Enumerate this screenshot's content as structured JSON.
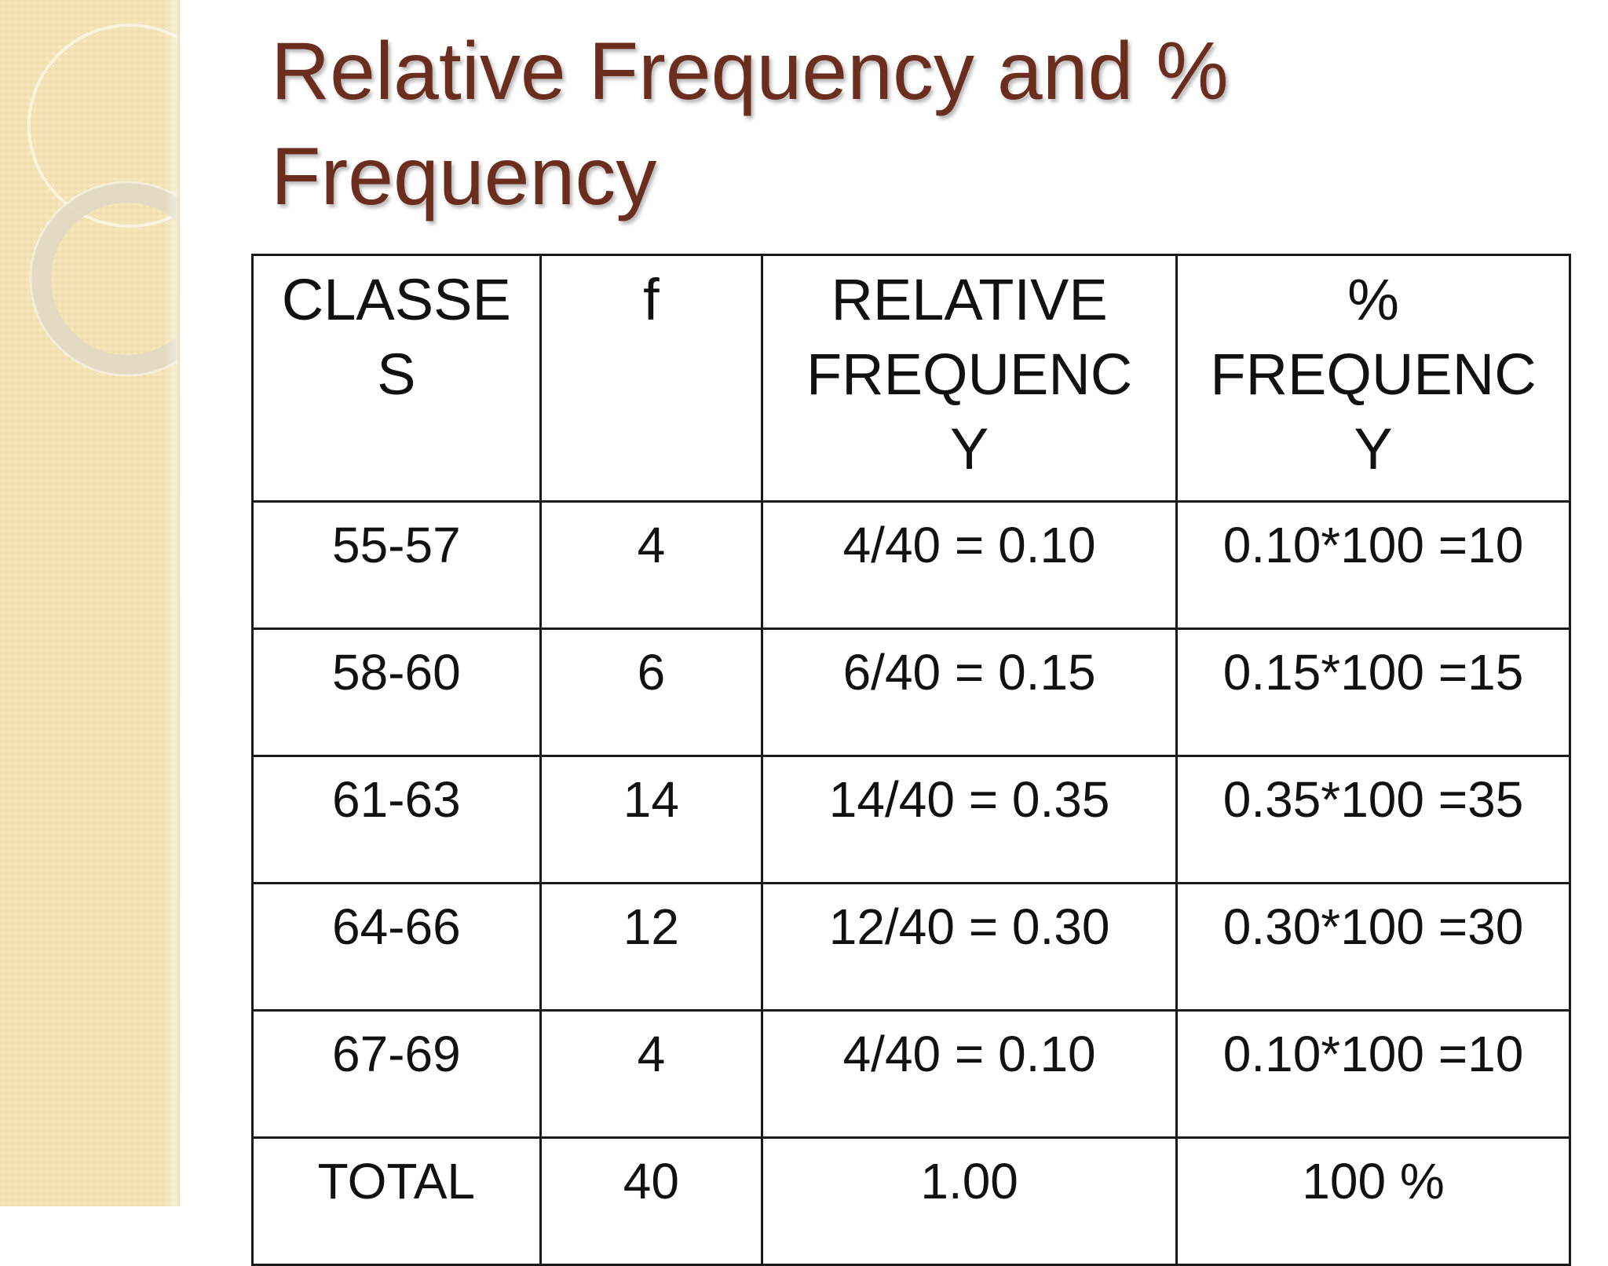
{
  "slide": {
    "title_line1": "Relative Frequency and %",
    "title_line2": "Frequency"
  },
  "table": {
    "headers": {
      "classes_l1": "CLASSE",
      "classes_l2": "S",
      "f": "f",
      "relative_l1": "RELATIVE",
      "relative_l2": "FREQUENC",
      "relative_l3": "Y",
      "percent_l1": "%",
      "percent_l2": "FREQUENC",
      "percent_l3": "Y"
    },
    "rows": [
      {
        "classes": "55-57",
        "f": "4",
        "relative": "4/40 = 0.10",
        "percent": "0.10*100 =10"
      },
      {
        "classes": "58-60",
        "f": "6",
        "relative": "6/40 = 0.15",
        "percent": "0.15*100 =15"
      },
      {
        "classes": "61-63",
        "f": "14",
        "relative": "14/40 = 0.35",
        "percent": "0.35*100 =35"
      },
      {
        "classes": "64-66",
        "f": "12",
        "relative": "12/40 = 0.30",
        "percent": "0.30*100 =30"
      },
      {
        "classes": "67-69",
        "f": "4",
        "relative": "4/40 = 0.10",
        "percent": "0.10*100 =10"
      },
      {
        "classes": "TOTAL",
        "f": "40",
        "relative": "1.00",
        "percent": "100 %"
      }
    ]
  },
  "colors": {
    "title": "#6b2d1e",
    "side_strip": "#f3e2b3",
    "table_border": "#1a1a1a",
    "table_text": "#111111"
  }
}
